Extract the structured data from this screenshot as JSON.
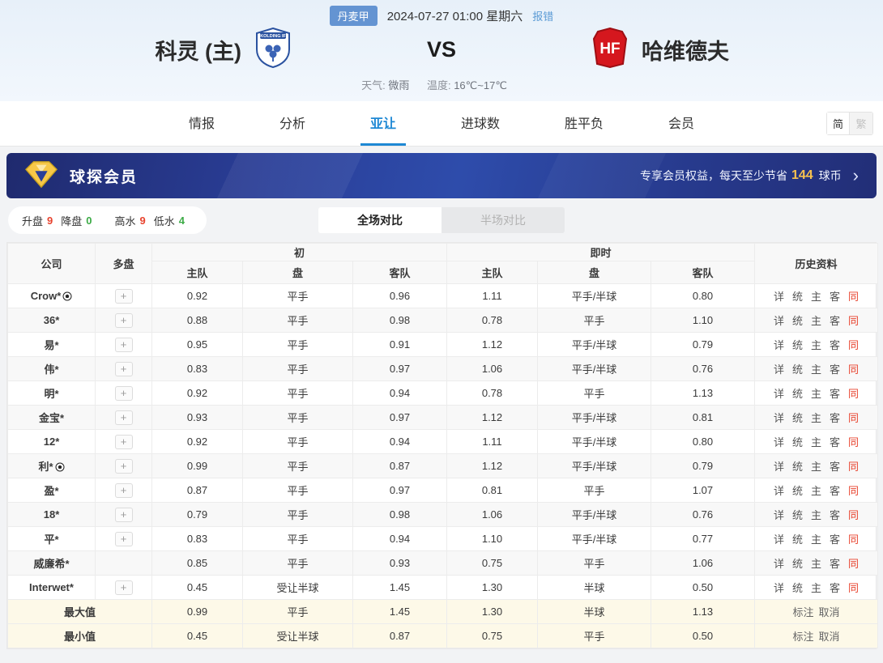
{
  "header": {
    "league_badge": "丹麦甲",
    "match_time": "2024-07-27 01:00 星期六",
    "report_error_label": "报错",
    "home_team": "科灵 (主)",
    "home_badge_text": "KOLDING IF",
    "away_team": "哈维德夫",
    "away_badge_text": "HF",
    "vs_label": "VS",
    "weather_label": "天气:",
    "weather_value": "微雨",
    "temperature_label": "温度:",
    "temperature_value": "16℃~17℃"
  },
  "nav": {
    "tabs": [
      {
        "label": "情报"
      },
      {
        "label": "分析"
      },
      {
        "label": "亚让"
      },
      {
        "label": "进球数"
      },
      {
        "label": "胜平负"
      },
      {
        "label": "会员"
      }
    ],
    "active_tab": "亚让",
    "lang_simplified": "简",
    "lang_traditional": "繁"
  },
  "banner": {
    "title": "球探会员",
    "promo_prefix": "专享会员权益，每天至少节省",
    "promo_number": "144",
    "promo_suffix": "球币",
    "arrow": "›"
  },
  "filters": {
    "up_label": "升盘",
    "up_value": "9",
    "down_label": "降盘",
    "down_value": "0",
    "high_label": "高水",
    "high_value": "9",
    "low_label": "低水",
    "low_value": "4"
  },
  "compare_tabs": {
    "full_label": "全场对比",
    "half_label": "半场对比"
  },
  "table": {
    "headers": {
      "company": "公司",
      "multi": "多盘",
      "initial": "初",
      "live": "即时",
      "home": "主队",
      "handicap": "盘",
      "away": "客队",
      "history": "历史资料"
    },
    "plus_label": "+",
    "history_links": [
      "详",
      "统",
      "主",
      "客",
      "同"
    ],
    "history_link_keys": [
      "detail",
      "stats",
      "home",
      "away",
      "same"
    ],
    "summary_links": [
      "标注",
      "取消"
    ],
    "summary_link_keys": [
      "mark",
      "cancel"
    ],
    "rows": [
      {
        "company": "Crow*",
        "ball": true,
        "multi": true,
        "init": [
          "0.92",
          "平手",
          "0.96"
        ],
        "live": [
          "1.11",
          "平手/半球",
          "0.80"
        ]
      },
      {
        "company": "36*",
        "ball": false,
        "multi": true,
        "init": [
          "0.88",
          "平手",
          "0.98"
        ],
        "live": [
          "0.78",
          "平手",
          "1.10"
        ]
      },
      {
        "company": "易*",
        "ball": false,
        "multi": true,
        "init": [
          "0.95",
          "平手",
          "0.91"
        ],
        "live": [
          "1.12",
          "平手/半球",
          "0.79"
        ]
      },
      {
        "company": "伟*",
        "ball": false,
        "multi": true,
        "init": [
          "0.83",
          "平手",
          "0.97"
        ],
        "live": [
          "1.06",
          "平手/半球",
          "0.76"
        ]
      },
      {
        "company": "明*",
        "ball": false,
        "multi": true,
        "init": [
          "0.92",
          "平手",
          "0.94"
        ],
        "live": [
          "0.78",
          "平手",
          "1.13"
        ]
      },
      {
        "company": "金宝*",
        "ball": false,
        "multi": true,
        "init": [
          "0.93",
          "平手",
          "0.97"
        ],
        "live": [
          "1.12",
          "平手/半球",
          "0.81"
        ]
      },
      {
        "company": "12*",
        "ball": false,
        "multi": true,
        "init": [
          "0.92",
          "平手",
          "0.94"
        ],
        "live": [
          "1.11",
          "平手/半球",
          "0.80"
        ]
      },
      {
        "company": "利*",
        "ball": true,
        "multi": true,
        "init": [
          "0.99",
          "平手",
          "0.87"
        ],
        "live": [
          "1.12",
          "平手/半球",
          "0.79"
        ]
      },
      {
        "company": "盈*",
        "ball": false,
        "multi": true,
        "init": [
          "0.87",
          "平手",
          "0.97"
        ],
        "live": [
          "0.81",
          "平手",
          "1.07"
        ]
      },
      {
        "company": "18*",
        "ball": false,
        "multi": true,
        "init": [
          "0.79",
          "平手",
          "0.98"
        ],
        "live": [
          "1.06",
          "平手/半球",
          "0.76"
        ]
      },
      {
        "company": "平*",
        "ball": false,
        "multi": true,
        "init": [
          "0.83",
          "平手",
          "0.94"
        ],
        "live": [
          "1.10",
          "平手/半球",
          "0.77"
        ]
      },
      {
        "company": "威廉希*",
        "ball": false,
        "multi": false,
        "init": [
          "0.85",
          "平手",
          "0.93"
        ],
        "live": [
          "0.75",
          "平手",
          "1.06"
        ]
      },
      {
        "company": "Interwet*",
        "ball": false,
        "multi": true,
        "init": [
          "0.45",
          "受让半球",
          "1.45"
        ],
        "live": [
          "1.30",
          "半球",
          "0.50"
        ]
      }
    ],
    "summary_rows": [
      {
        "label": "最大值",
        "init": [
          "0.99",
          "平手",
          "1.45"
        ],
        "live": [
          "1.30",
          "半球",
          "1.13"
        ]
      },
      {
        "label": "最小值",
        "init": [
          "0.45",
          "受让半球",
          "0.87"
        ],
        "live": [
          "0.75",
          "平手",
          "0.50"
        ]
      }
    ]
  },
  "colors": {
    "accent_blue": "#1e88d4",
    "badge_blue": "#6494d2",
    "banner_blue": "#2a3f98",
    "gold": "#f6c14f",
    "up_red": "#e8432e",
    "down_green": "#3cab46",
    "summary_yellow": "#fdf9e8"
  }
}
